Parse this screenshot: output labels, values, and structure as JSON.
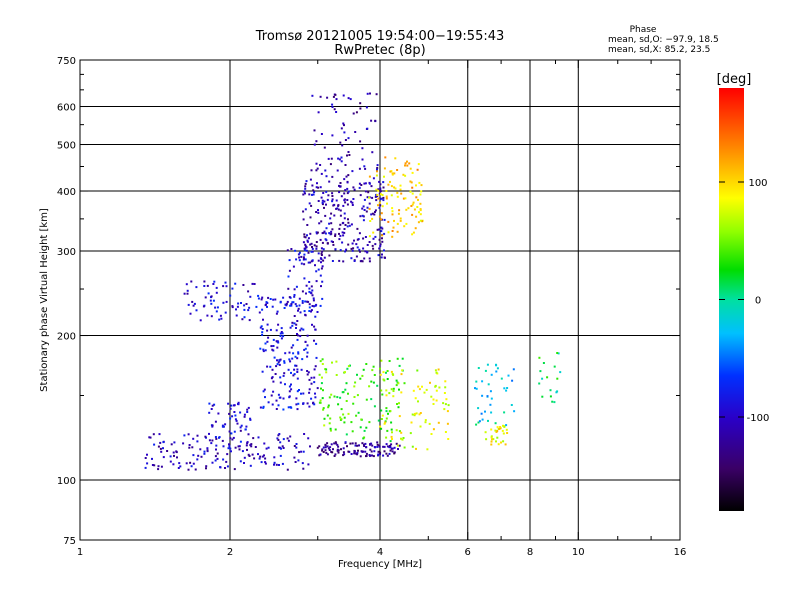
{
  "chart_data": {
    "type": "scatter",
    "title": "Tromsø 20121005 19:54:00−19:55:43",
    "subtitle": "RwPretec (8p)",
    "phase_header": "Phase",
    "phase_stats": [
      "mean, sd,O: −97.9, 18.5",
      "mean, sd,X: 85.2, 23.5"
    ],
    "xlabel": "Frequency [MHz]",
    "ylabel": "Stationary phase Virtual Height [km]",
    "x_scale": "log",
    "y_scale": "log",
    "xlim": [
      1,
      16
    ],
    "ylim": [
      75,
      750
    ],
    "x_ticks": [
      1,
      2,
      4,
      6,
      8,
      10,
      16
    ],
    "y_ticks": [
      75,
      100,
      200,
      300,
      400,
      500,
      600,
      750
    ],
    "x_gridlines": [
      2,
      4,
      6,
      8,
      10
    ],
    "y_gridlines": [
      100,
      200,
      300,
      400,
      500,
      600
    ],
    "colorbar": {
      "label": "[deg]",
      "range": [
        -180,
        180
      ],
      "ticks": [
        100,
        0,
        -100
      ],
      "colormap": "rainbow (black→purple→blue→cyan→green→yellow→red)"
    },
    "clusters": [
      {
        "f": [
          1.35,
          2.9
        ],
        "h": [
          105,
          125
        ],
        "phase": -105,
        "n": 160
      },
      {
        "f": [
          1.8,
          2.2
        ],
        "h": [
          115,
          145
        ],
        "phase": -95,
        "n": 60
      },
      {
        "f": [
          1.6,
          2.3
        ],
        "h": [
          215,
          260
        ],
        "phase": -95,
        "n": 70
      },
      {
        "f": [
          2.3,
          3.0
        ],
        "h": [
          140,
          240
        ],
        "phase": -90,
        "n": 220
      },
      {
        "f": [
          2.6,
          3.1
        ],
        "h": [
          230,
          310
        ],
        "phase": -95,
        "n": 70
      },
      {
        "f": [
          2.8,
          4.1
        ],
        "h": [
          285,
          420
        ],
        "phase": -110,
        "n": 280
      },
      {
        "f": [
          2.9,
          4.0
        ],
        "h": [
          420,
          640
        ],
        "phase": -115,
        "n": 80
      },
      {
        "f": [
          3.0,
          4.4
        ],
        "h": [
          112,
          120
        ],
        "phase": -120,
        "n": 120
      },
      {
        "f": [
          3.0,
          4.5
        ],
        "h": [
          120,
          180
        ],
        "phase": 40,
        "n": 130
      },
      {
        "f": [
          3.8,
          4.9
        ],
        "h": [
          320,
          470
        ],
        "phase": 105,
        "n": 110
      },
      {
        "f": [
          4.0,
          5.5
        ],
        "h": [
          115,
          170
        ],
        "phase": 80,
        "n": 80
      },
      {
        "f": [
          6.5,
          7.2
        ],
        "h": [
          118,
          130
        ],
        "phase": 85,
        "n": 30
      },
      {
        "f": [
          6.2,
          7.5
        ],
        "h": [
          130,
          175
        ],
        "phase": -20,
        "n": 40
      },
      {
        "f": [
          8.3,
          9.2
        ],
        "h": [
          145,
          185
        ],
        "phase": 10,
        "n": 18
      }
    ]
  }
}
